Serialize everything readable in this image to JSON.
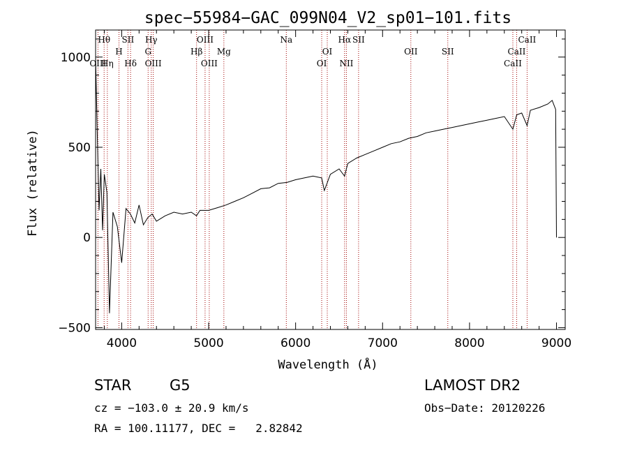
{
  "chart_data": {
    "type": "line",
    "title": "spec−55984−GAC_099N04_V2_sp01−101.fits",
    "xlabel": "Wavelength (Å)",
    "ylabel": "Flux (relative)",
    "xlim": [
      3700,
      9100
    ],
    "ylim": [
      -510,
      1150
    ],
    "x_ticks": [
      4000,
      5000,
      6000,
      7000,
      8000,
      9000
    ],
    "y_ticks": [
      -500,
      0,
      500,
      1000
    ],
    "grid": false,
    "series": [
      {
        "x": [
          3700,
          3720,
          3740,
          3760,
          3780,
          3800,
          3830,
          3860,
          3900,
          3950,
          4000,
          4050,
          4100,
          4150,
          4200,
          4250,
          4300,
          4350,
          4400,
          4500,
          4600,
          4700,
          4800,
          4860,
          4900,
          5000,
          5100,
          5200,
          5300,
          5400,
          5500,
          5600,
          5700,
          5800,
          5900,
          6000,
          6100,
          6200,
          6300,
          6330,
          6400,
          6500,
          6563,
          6600,
          6700,
          6800,
          6900,
          7000,
          7100,
          7200,
          7300,
          7400,
          7500,
          7600,
          7700,
          7800,
          7900,
          8000,
          8100,
          8200,
          8300,
          8400,
          8498,
          8542,
          8600,
          8662,
          8700,
          8800,
          8900,
          8950,
          8990,
          9000
        ],
        "y": [
          1000,
          560,
          150,
          380,
          40,
          350,
          250,
          -420,
          140,
          60,
          -140,
          160,
          130,
          80,
          180,
          70,
          110,
          130,
          90,
          120,
          140,
          130,
          140,
          120,
          150,
          150,
          165,
          180,
          200,
          220,
          245,
          270,
          275,
          300,
          305,
          320,
          330,
          340,
          330,
          260,
          350,
          380,
          340,
          410,
          440,
          460,
          480,
          500,
          520,
          530,
          550,
          560,
          580,
          590,
          600,
          610,
          620,
          630,
          640,
          650,
          660,
          670,
          600,
          680,
          690,
          620,
          705,
          720,
          740,
          760,
          710,
          0
        ]
      }
    ],
    "lines": [
      {
        "name": "Hθ",
        "wavelength": 3798,
        "row": 0
      },
      {
        "name": "OIII",
        "wavelength": 3727,
        "row": 2
      },
      {
        "name": "Hη",
        "wavelength": 3835,
        "row": 2
      },
      {
        "name": "H",
        "wavelength": 3969,
        "row": 1
      },
      {
        "name": "SII",
        "wavelength": 4072,
        "row": 0
      },
      {
        "name": "Hδ",
        "wavelength": 4102,
        "row": 2
      },
      {
        "name": "Hγ",
        "wavelength": 4340,
        "row": 0
      },
      {
        "name": "G",
        "wavelength": 4304,
        "row": 1
      },
      {
        "name": "OIII",
        "wavelength": 4363,
        "row": 2
      },
      {
        "name": "OIII",
        "wavelength": 4959,
        "row": 0
      },
      {
        "name": "Hβ",
        "wavelength": 4861,
        "row": 1
      },
      {
        "name": "OIII",
        "wavelength": 5007,
        "row": 2
      },
      {
        "name": "Mg",
        "wavelength": 5175,
        "row": 1
      },
      {
        "name": "Na",
        "wavelength": 5893,
        "row": 0
      },
      {
        "name": "OI",
        "wavelength": 6364,
        "row": 1
      },
      {
        "name": "OI",
        "wavelength": 6300,
        "row": 2
      },
      {
        "name": "Hα",
        "wavelength": 6563,
        "row": 0
      },
      {
        "name": "SII",
        "wavelength": 6724,
        "row": 0
      },
      {
        "name": "NII",
        "wavelength": 6584,
        "row": 2
      },
      {
        "name": "OII",
        "wavelength": 7325,
        "row": 1
      },
      {
        "name": "SII",
        "wavelength": 7750,
        "row": 1
      },
      {
        "name": "CaII",
        "wavelength": 8662,
        "row": 0
      },
      {
        "name": "CaII",
        "wavelength": 8542,
        "row": 1
      },
      {
        "name": "CaII",
        "wavelength": 8498,
        "row": 2
      }
    ],
    "colors": {
      "spectrum": "#000000",
      "line_markers": "#a00000"
    }
  },
  "info": {
    "class": "STAR",
    "subclass": "G5",
    "survey": "LAMOST DR2",
    "redshift": "cz = −103.0 ± 20.9 km/s",
    "obs_date": "Obs−Date: 20120226",
    "coords": "RA = 100.11177, DEC =   2.82842"
  }
}
